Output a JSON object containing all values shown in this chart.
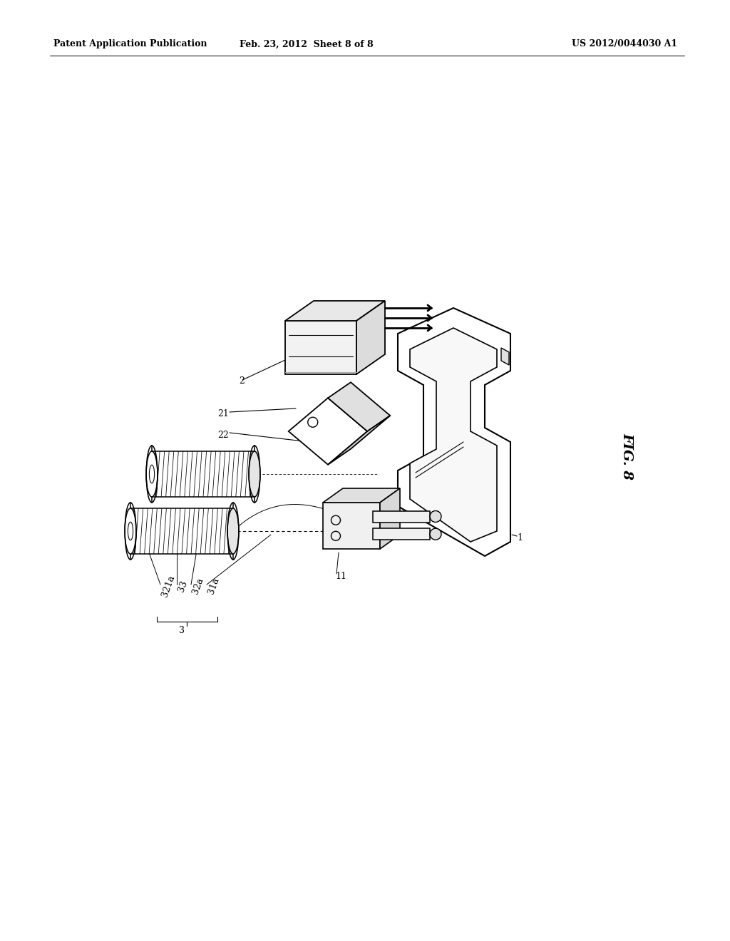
{
  "bg_color": "#ffffff",
  "line_color": "#000000",
  "header_left": "Patent Application Publication",
  "header_center": "Feb. 23, 2012  Sheet 8 of 8",
  "header_right": "US 2012/0044030 A1",
  "fig_label": "FIG. 8",
  "fig_label_rotation": -90,
  "header_fontsize": 9,
  "label_fontsize": 9,
  "lw_main": 1.4,
  "lw_detail": 0.9,
  "lw_thin": 0.6
}
